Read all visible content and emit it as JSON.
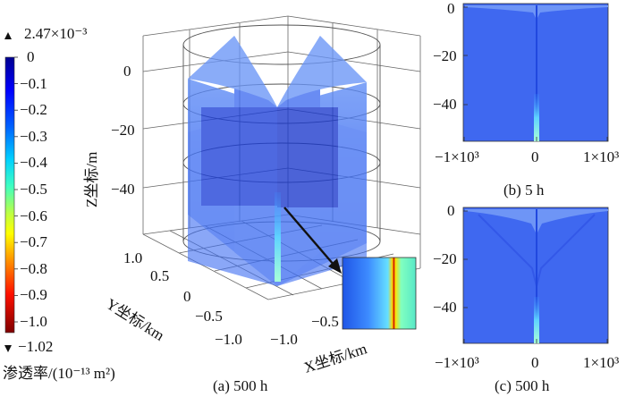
{
  "colorbar": {
    "max_label": "2.47×10⁻³",
    "min_label": "−1.02",
    "ticks": [
      "0",
      "−0.1",
      "−0.2",
      "−0.3",
      "−0.4",
      "−0.5",
      "−0.6",
      "−0.7",
      "−0.8",
      "−0.9",
      "−1.0"
    ],
    "title": "渗透率/(10⁻¹³ m²)",
    "colors": [
      "#00008f",
      "#0000ff",
      "#0080ff",
      "#00ffff",
      "#80ff80",
      "#ffff00",
      "#ff8000",
      "#ff0000",
      "#800000"
    ]
  },
  "panel_a": {
    "caption": "(a) 500 h",
    "z_axis_label": "Z坐标/m",
    "z_ticks": [
      "0",
      "−20",
      "−40"
    ],
    "y_axis_label": "Y坐标/km",
    "y_ticks": [
      "1.0",
      "0.5",
      "0",
      "−0.5",
      "−1.0"
    ],
    "x_axis_label": "X坐标/km",
    "x_ticks": [
      "−1.0",
      "−0.5"
    ]
  },
  "panel_b": {
    "caption": "(b) 5 h",
    "y_ticks": [
      "0",
      "−20",
      "−40"
    ],
    "x_ticks": [
      "−1×10³",
      "0",
      "1×10³"
    ]
  },
  "panel_c": {
    "caption": "(c) 500 h",
    "y_ticks": [
      "0",
      "−20",
      "−40"
    ],
    "x_ticks": [
      "−1×10³",
      "0",
      "1×10³"
    ]
  }
}
